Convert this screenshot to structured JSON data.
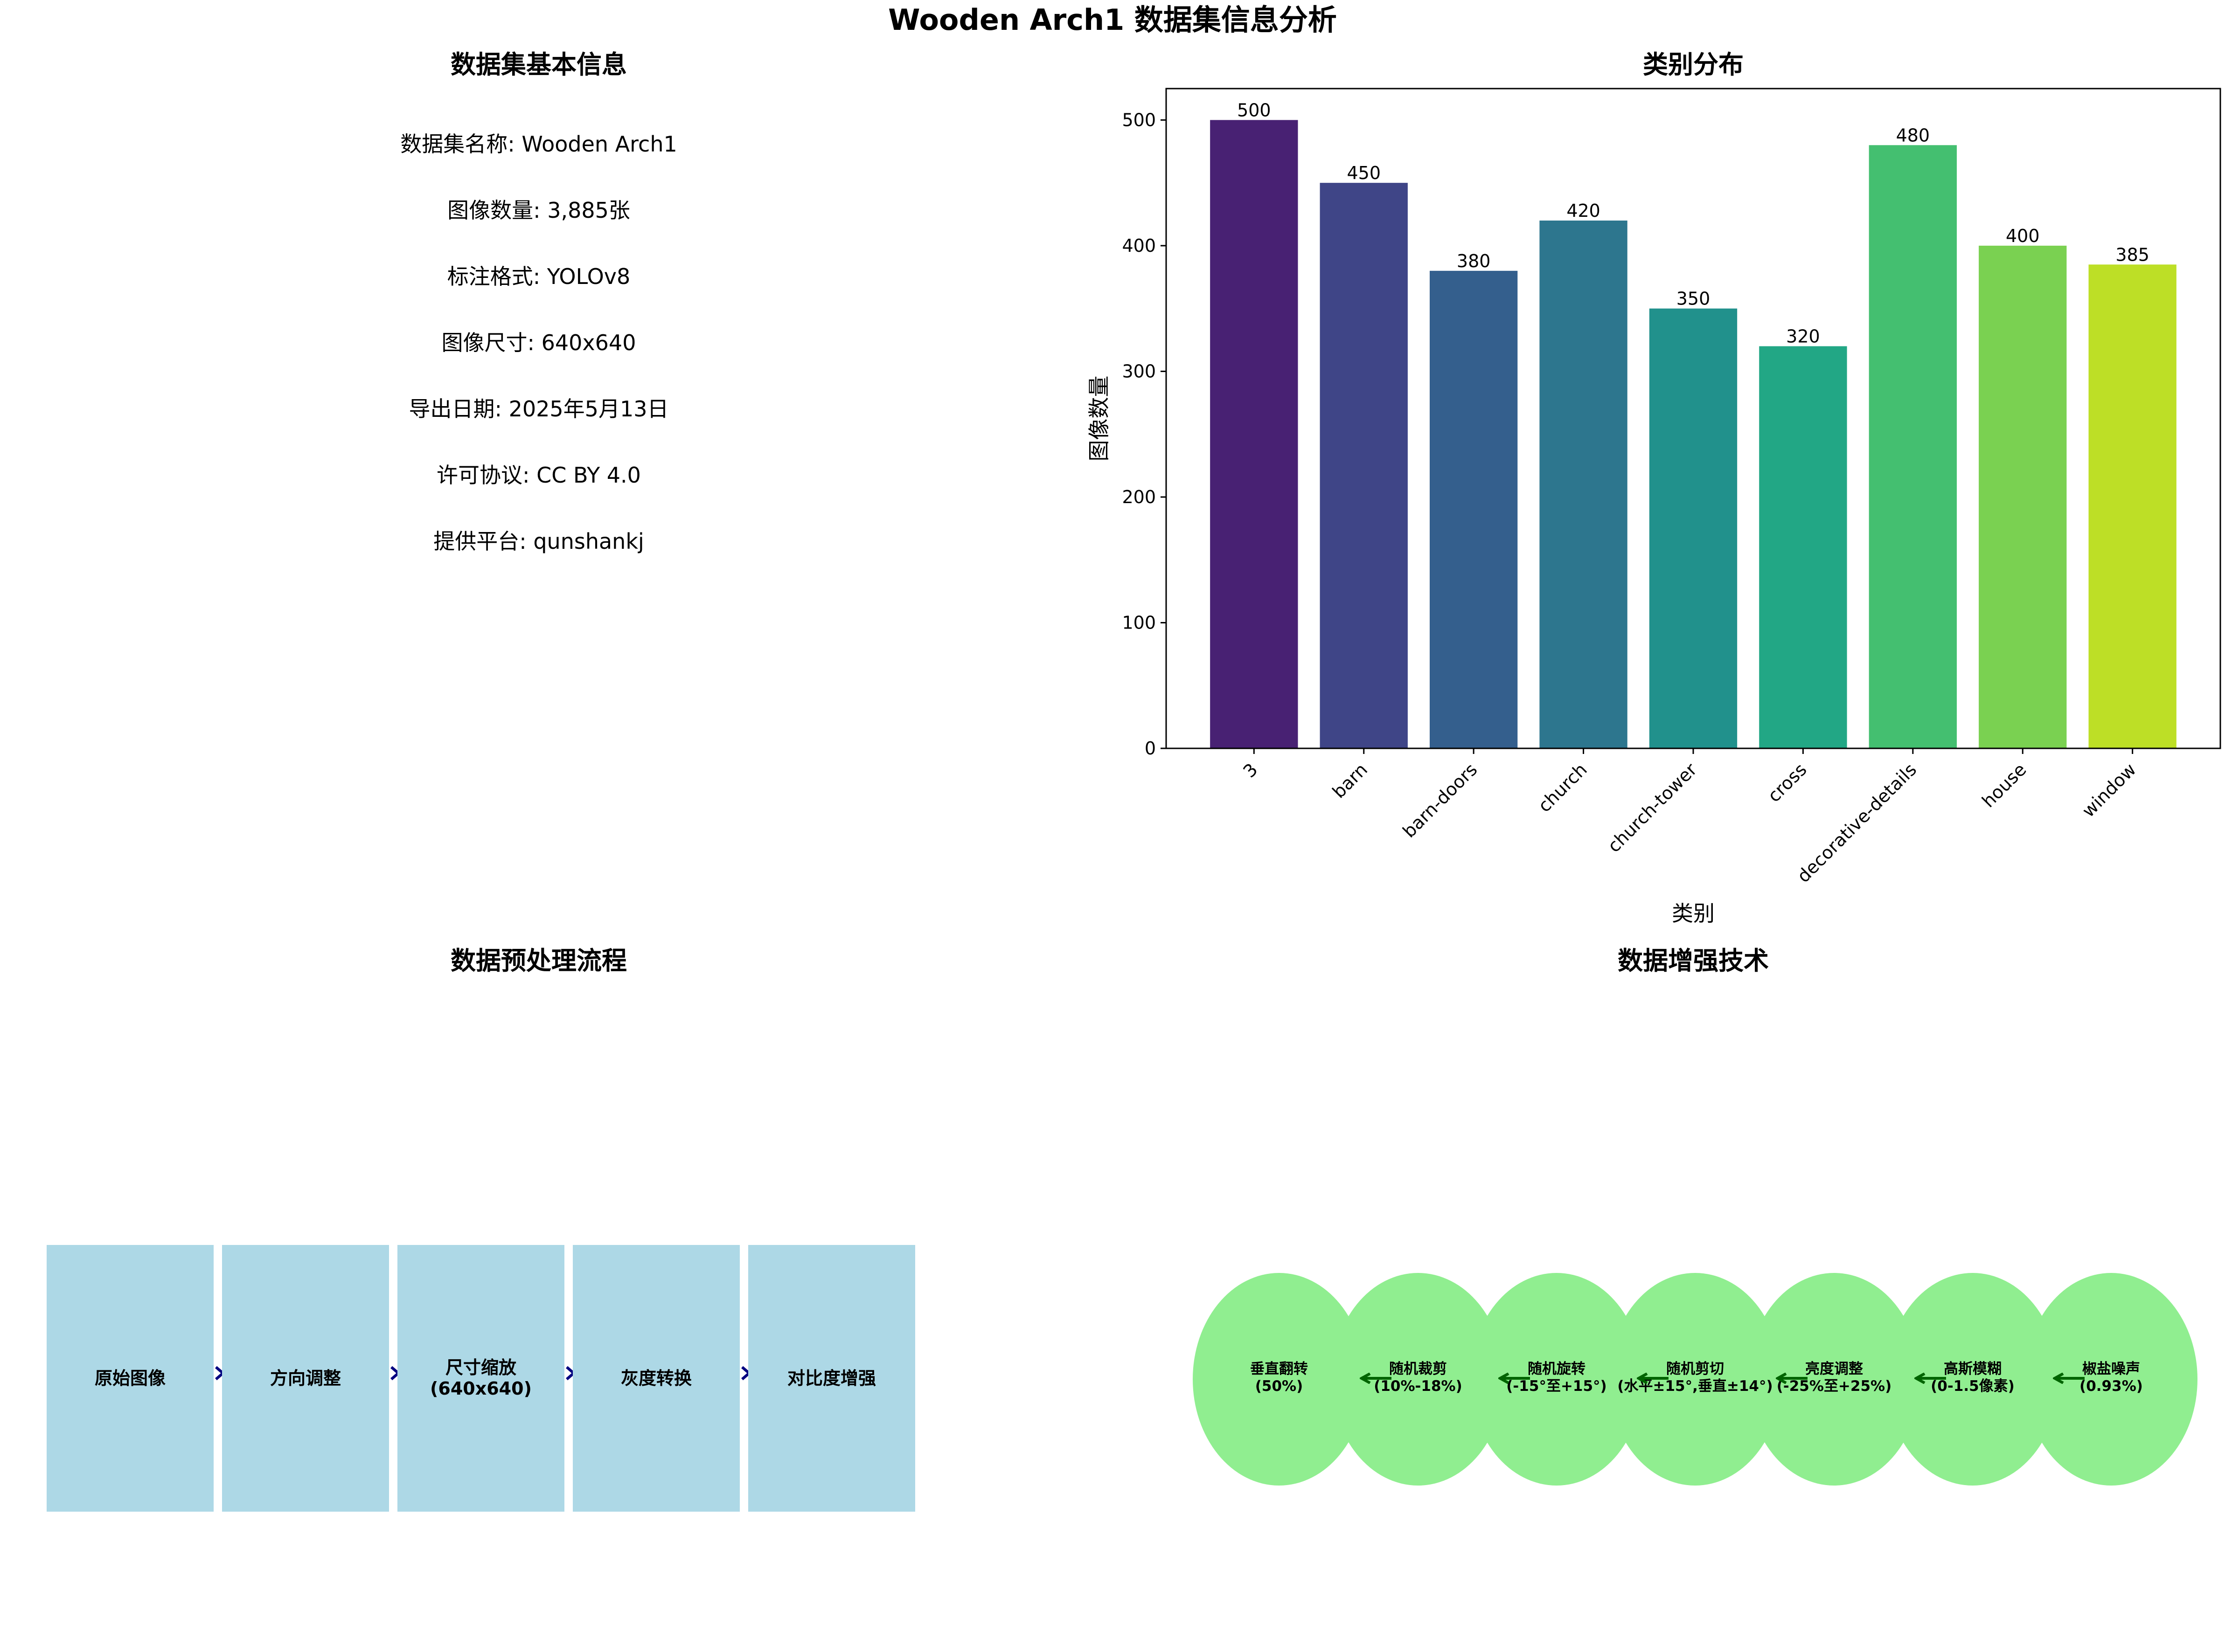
{
  "title": "Wooden Arch1 数据集信息分析",
  "panels": {
    "info": {
      "title": "数据集基本信息",
      "lines": [
        "数据集名称: Wooden Arch1",
        "图像数量: 3,885张",
        "标注格式: YOLOv8",
        "图像尺寸: 640x640",
        "导出日期: 2025年5月13日",
        "许可协议: CC BY 4.0",
        "提供平台: qunshankj"
      ]
    },
    "distribution": {
      "title": "类别分布"
    },
    "preprocess": {
      "title": "数据预处理流程",
      "steps": [
        "原始图像",
        "方向调整",
        "尺寸缩放\n(640x640)",
        "灰度转换",
        "对比度增强"
      ],
      "box_color": "#add8e6",
      "arrow_color": "#000080"
    },
    "augmentation": {
      "title": "数据增强技术",
      "techniques": [
        "垂直翻转\n(50%)",
        "随机裁剪\n(10%-18%)",
        "随机旋转\n(-15°至+15°)",
        "随机剪切\n(水平±15°,垂直±14°)",
        "亮度调整\n(-25%至+25%)",
        "高斯模糊\n(0-1.5像素)",
        "椒盐噪声\n(0.93%)"
      ],
      "circle_color": "#90ee90",
      "arrow_color": "#006400"
    }
  },
  "chart_data": {
    "type": "bar",
    "title": "类别分布",
    "xlabel": "类别",
    "ylabel": "图像数量",
    "categories": [
      "3",
      "barn",
      "barn-doors",
      "church",
      "church-tower",
      "cross",
      "decorative-details",
      "house",
      "window"
    ],
    "values": [
      500,
      450,
      380,
      420,
      350,
      320,
      480,
      400,
      385
    ],
    "data_labels": [
      "500",
      "450",
      "380",
      "420",
      "350",
      "320",
      "480",
      "400",
      "385"
    ],
    "ylim": [
      0,
      525
    ],
    "yticks": [
      0,
      100,
      200,
      300,
      400,
      500
    ],
    "ytick_labels": [
      "0",
      "100",
      "200",
      "300",
      "400",
      "500"
    ],
    "grid": false,
    "colors": [
      "#482173",
      "#3f4587",
      "#345f8d",
      "#2d768e",
      "#21918c",
      "#22a785",
      "#44bf70",
      "#7ad151",
      "#bddf26"
    ]
  }
}
